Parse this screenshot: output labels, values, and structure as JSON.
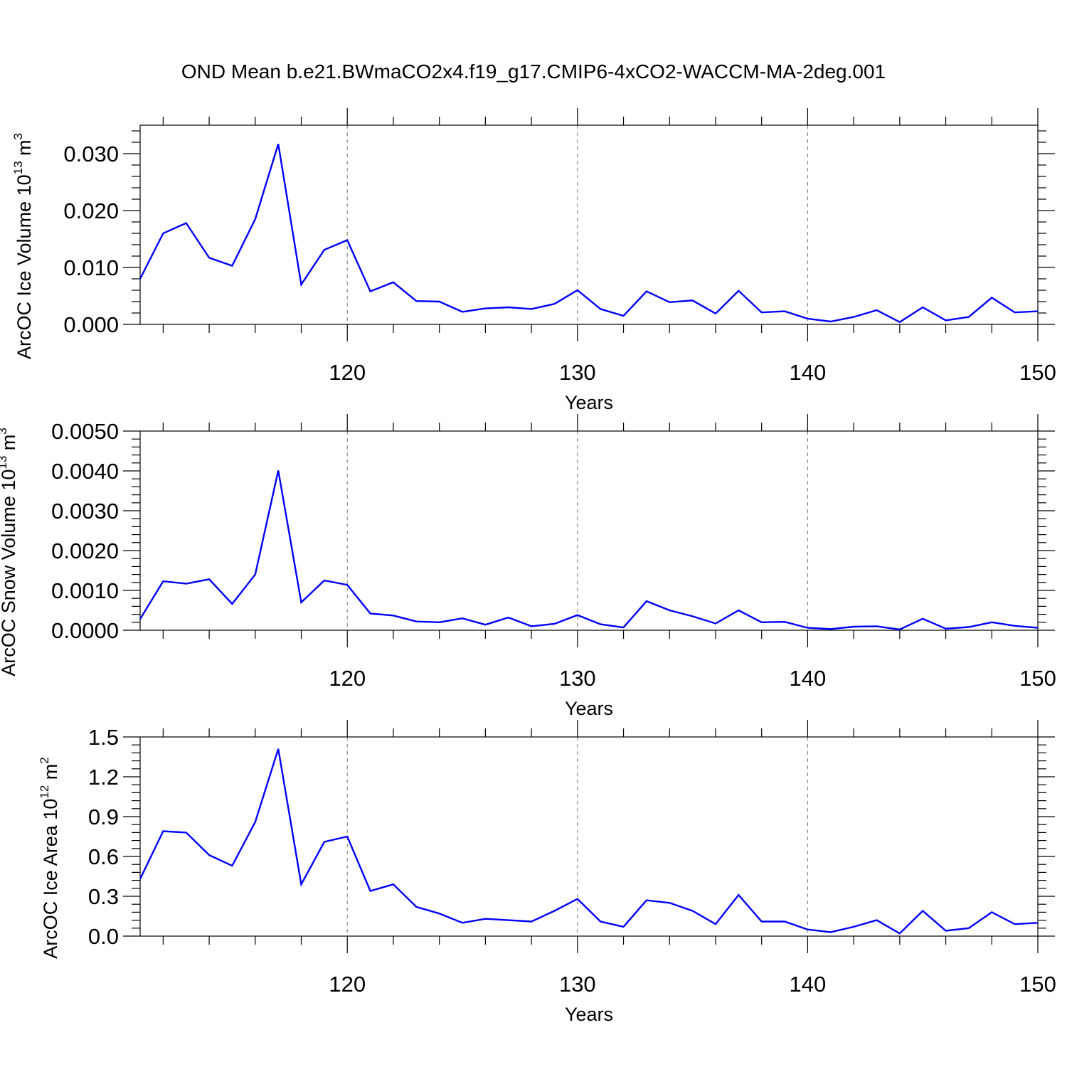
{
  "figure": {
    "title": "OND Mean b.e21.BWmaCO2x4.f19_g17.CMIP6-4xCO2-WACCM-MA-2deg.001",
    "line_color": "#0000ff"
  },
  "chart_data": [
    {
      "type": "line",
      "title": "",
      "xlabel": "Years",
      "ylabel": "ArcOC Ice Volume 10",
      "ylabel_exp": "13",
      "ylabel_unit": "m",
      "ylabel_unit_exp": "3",
      "xlim": [
        111,
        150
      ],
      "ylim": [
        0,
        0.035
      ],
      "x_major_ticks": [
        120,
        130,
        140,
        150
      ],
      "x_tick_labels": [
        "120",
        "130",
        "140",
        "150"
      ],
      "y_major_ticks": [
        0,
        0.01,
        0.02,
        0.03
      ],
      "y_tick_labels": [
        "0.000",
        "0.010",
        "0.020",
        "0.030"
      ],
      "grid": "dashed vertical lines at x major ticks",
      "x": [
        111,
        112,
        113,
        114,
        115,
        116,
        117,
        118,
        119,
        120,
        121,
        122,
        123,
        124,
        125,
        126,
        127,
        128,
        129,
        130,
        131,
        132,
        133,
        134,
        135,
        136,
        137,
        138,
        139,
        140,
        141,
        142,
        143,
        144,
        145,
        146,
        147,
        148,
        149,
        150
      ],
      "series": [
        {
          "values": [
            0.008,
            0.016,
            0.0178,
            0.0117,
            0.0103,
            0.0185,
            0.0317,
            0.007,
            0.0131,
            0.0148,
            0.0058,
            0.0074,
            0.0041,
            0.004,
            0.0022,
            0.0028,
            0.003,
            0.0027,
            0.0036,
            0.006,
            0.0027,
            0.0015,
            0.0058,
            0.0039,
            0.0042,
            0.0019,
            0.0059,
            0.0021,
            0.0023,
            0.001,
            0.0005,
            0.0013,
            0.0025,
            0.0004,
            0.003,
            0.0007,
            0.0013,
            0.0047,
            0.0021,
            0.0023
          ]
        }
      ]
    },
    {
      "type": "line",
      "title": "",
      "xlabel": "Years",
      "ylabel": "ArcOC Snow Volume 10",
      "ylabel_exp": "13",
      "ylabel_unit": "m",
      "ylabel_unit_exp": "3",
      "xlim": [
        111,
        150
      ],
      "ylim": [
        0,
        0.005
      ],
      "x_major_ticks": [
        120,
        130,
        140,
        150
      ],
      "x_tick_labels": [
        "120",
        "130",
        "140",
        "150"
      ],
      "y_major_ticks": [
        0,
        0.001,
        0.002,
        0.003,
        0.004,
        0.005
      ],
      "y_tick_labels": [
        "0.0000",
        "0.0010",
        "0.0020",
        "0.0030",
        "0.0040",
        "0.0050"
      ],
      "grid": "dashed vertical lines at x major ticks",
      "x": [
        111,
        112,
        113,
        114,
        115,
        116,
        117,
        118,
        119,
        120,
        121,
        122,
        123,
        124,
        125,
        126,
        127,
        128,
        129,
        130,
        131,
        132,
        133,
        134,
        135,
        136,
        137,
        138,
        139,
        140,
        141,
        142,
        143,
        144,
        145,
        146,
        147,
        148,
        149,
        150
      ],
      "series": [
        {
          "values": [
            0.00028,
            0.00123,
            0.00117,
            0.00128,
            0.00066,
            0.0014,
            0.00401,
            0.0007,
            0.00125,
            0.00114,
            0.00042,
            0.00037,
            0.00022,
            0.0002,
            0.0003,
            0.00014,
            0.00032,
            0.0001,
            0.00016,
            0.00038,
            0.00015,
            7e-05,
            0.00073,
            0.0005,
            0.00035,
            0.00017,
            0.0005,
            0.0002,
            0.00021,
            6e-05,
            3e-05,
            9e-05,
            0.0001,
            2e-05,
            0.00029,
            4e-05,
            8e-05,
            0.0002,
            0.00011,
            6e-05
          ]
        }
      ]
    },
    {
      "type": "line",
      "title": "",
      "xlabel": "Years",
      "ylabel": "ArcOC Ice Area 10",
      "ylabel_exp": "12",
      "ylabel_unit": "m",
      "ylabel_unit_exp": "2",
      "xlim": [
        111,
        150
      ],
      "ylim": [
        0,
        1.5
      ],
      "x_major_ticks": [
        120,
        130,
        140,
        150
      ],
      "x_tick_labels": [
        "120",
        "130",
        "140",
        "150"
      ],
      "y_major_ticks": [
        0,
        0.3,
        0.6,
        0.9,
        1.2,
        1.5
      ],
      "y_tick_labels": [
        "0.0",
        "0.3",
        "0.6",
        "0.9",
        "1.2",
        "1.5"
      ],
      "grid": "dashed vertical lines at x major ticks",
      "x": [
        111,
        112,
        113,
        114,
        115,
        116,
        117,
        118,
        119,
        120,
        121,
        122,
        123,
        124,
        125,
        126,
        127,
        128,
        129,
        130,
        131,
        132,
        133,
        134,
        135,
        136,
        137,
        138,
        139,
        140,
        141,
        142,
        143,
        144,
        145,
        146,
        147,
        148,
        149,
        150
      ],
      "series": [
        {
          "values": [
            0.43,
            0.79,
            0.78,
            0.61,
            0.53,
            0.86,
            1.41,
            0.39,
            0.71,
            0.75,
            0.34,
            0.39,
            0.22,
            0.17,
            0.1,
            0.13,
            0.12,
            0.11,
            0.19,
            0.28,
            0.11,
            0.07,
            0.27,
            0.25,
            0.19,
            0.09,
            0.31,
            0.11,
            0.11,
            0.05,
            0.03,
            0.07,
            0.12,
            0.02,
            0.19,
            0.04,
            0.06,
            0.18,
            0.09,
            0.1
          ]
        }
      ]
    }
  ]
}
